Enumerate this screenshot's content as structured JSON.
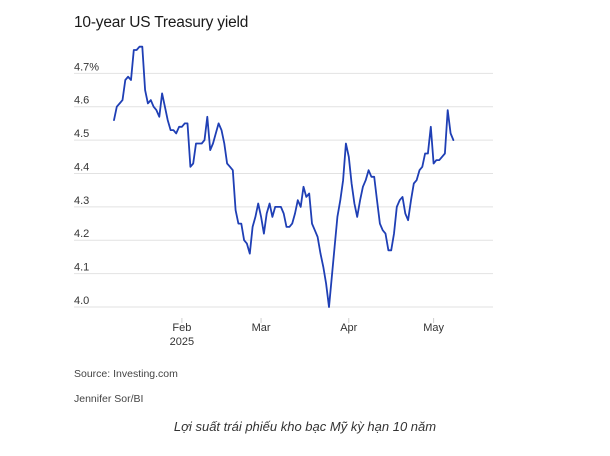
{
  "chart_data": {
    "type": "line",
    "title": "10-year US Treasury yield",
    "yticks": [
      "4.7%",
      "4.6",
      "4.5",
      "4.4",
      "4.3",
      "4.2",
      "4.1",
      "4.0"
    ],
    "ytick_values": [
      4.7,
      4.6,
      4.5,
      4.4,
      4.3,
      4.2,
      4.1,
      4.0
    ],
    "ylim": [
      3.97,
      4.8
    ],
    "xlim": [
      "2025-01-08",
      "2025-05-22"
    ],
    "xticks": [
      {
        "label": "Feb",
        "sublabel": "2025",
        "date": "2025-02-01"
      },
      {
        "label": "Mar",
        "sublabel": "",
        "date": "2025-03-01"
      },
      {
        "label": "Apr",
        "sublabel": "",
        "date": "2025-04-01"
      },
      {
        "label": "May",
        "sublabel": "",
        "date": "2025-05-01"
      }
    ],
    "grid": "horizontal",
    "line_color": "#1f3fb5",
    "series": [
      {
        "points": [
          [
            "2025-01-08",
            4.56
          ],
          [
            "2025-01-09",
            4.6
          ],
          [
            "2025-01-10",
            4.61
          ],
          [
            "2025-01-11",
            4.62
          ],
          [
            "2025-01-12",
            4.68
          ],
          [
            "2025-01-13",
            4.69
          ],
          [
            "2025-01-14",
            4.68
          ],
          [
            "2025-01-15",
            4.77
          ],
          [
            "2025-01-16",
            4.77
          ],
          [
            "2025-01-17",
            4.78
          ],
          [
            "2025-01-18",
            4.78
          ],
          [
            "2025-01-19",
            4.65
          ],
          [
            "2025-01-20",
            4.61
          ],
          [
            "2025-01-21",
            4.62
          ],
          [
            "2025-01-22",
            4.6
          ],
          [
            "2025-01-23",
            4.59
          ],
          [
            "2025-01-24",
            4.57
          ],
          [
            "2025-01-25",
            4.64
          ],
          [
            "2025-01-26",
            4.6
          ],
          [
            "2025-01-27",
            4.56
          ],
          [
            "2025-01-28",
            4.53
          ],
          [
            "2025-01-29",
            4.53
          ],
          [
            "2025-01-30",
            4.52
          ],
          [
            "2025-01-31",
            4.54
          ],
          [
            "2025-02-01",
            4.54
          ],
          [
            "2025-02-02",
            4.55
          ],
          [
            "2025-02-03",
            4.55
          ],
          [
            "2025-02-04",
            4.42
          ],
          [
            "2025-02-05",
            4.43
          ],
          [
            "2025-02-06",
            4.49
          ],
          [
            "2025-02-07",
            4.49
          ],
          [
            "2025-02-08",
            4.49
          ],
          [
            "2025-02-09",
            4.5
          ],
          [
            "2025-02-10",
            4.57
          ],
          [
            "2025-02-11",
            4.47
          ],
          [
            "2025-02-12",
            4.49
          ],
          [
            "2025-02-13",
            4.52
          ],
          [
            "2025-02-14",
            4.55
          ],
          [
            "2025-02-15",
            4.53
          ],
          [
            "2025-02-16",
            4.49
          ],
          [
            "2025-02-17",
            4.43
          ],
          [
            "2025-02-18",
            4.42
          ],
          [
            "2025-02-19",
            4.41
          ],
          [
            "2025-02-20",
            4.29
          ],
          [
            "2025-02-21",
            4.25
          ],
          [
            "2025-02-22",
            4.25
          ],
          [
            "2025-02-23",
            4.2
          ],
          [
            "2025-02-24",
            4.19
          ],
          [
            "2025-02-25",
            4.16
          ],
          [
            "2025-02-26",
            4.24
          ],
          [
            "2025-02-27",
            4.27
          ],
          [
            "2025-02-28",
            4.31
          ],
          [
            "2025-03-01",
            4.27
          ],
          [
            "2025-03-02",
            4.22
          ],
          [
            "2025-03-03",
            4.28
          ],
          [
            "2025-03-04",
            4.31
          ],
          [
            "2025-03-05",
            4.27
          ],
          [
            "2025-03-06",
            4.3
          ],
          [
            "2025-03-07",
            4.3
          ],
          [
            "2025-03-08",
            4.3
          ],
          [
            "2025-03-09",
            4.28
          ],
          [
            "2025-03-10",
            4.24
          ],
          [
            "2025-03-11",
            4.24
          ],
          [
            "2025-03-12",
            4.25
          ],
          [
            "2025-03-13",
            4.28
          ],
          [
            "2025-03-14",
            4.32
          ],
          [
            "2025-03-15",
            4.3
          ],
          [
            "2025-03-16",
            4.36
          ],
          [
            "2025-03-17",
            4.33
          ],
          [
            "2025-03-18",
            4.34
          ],
          [
            "2025-03-19",
            4.25
          ],
          [
            "2025-03-20",
            4.23
          ],
          [
            "2025-03-21",
            4.21
          ],
          [
            "2025-03-22",
            4.16
          ],
          [
            "2025-03-23",
            4.12
          ],
          [
            "2025-03-24",
            4.07
          ],
          [
            "2025-03-25",
            4.0
          ],
          [
            "2025-03-26",
            4.09
          ],
          [
            "2025-03-27",
            4.18
          ],
          [
            "2025-03-28",
            4.27
          ],
          [
            "2025-03-29",
            4.32
          ],
          [
            "2025-03-30",
            4.38
          ],
          [
            "2025-03-31",
            4.49
          ],
          [
            "2025-04-01",
            4.45
          ],
          [
            "2025-04-02",
            4.37
          ],
          [
            "2025-04-03",
            4.31
          ],
          [
            "2025-04-04",
            4.27
          ],
          [
            "2025-04-05",
            4.32
          ],
          [
            "2025-04-06",
            4.36
          ],
          [
            "2025-04-07",
            4.38
          ],
          [
            "2025-04-08",
            4.41
          ],
          [
            "2025-04-09",
            4.39
          ],
          [
            "2025-04-10",
            4.39
          ],
          [
            "2025-04-11",
            4.32
          ],
          [
            "2025-04-12",
            4.25
          ],
          [
            "2025-04-13",
            4.23
          ],
          [
            "2025-04-14",
            4.22
          ],
          [
            "2025-04-15",
            4.17
          ],
          [
            "2025-04-16",
            4.17
          ],
          [
            "2025-04-17",
            4.22
          ],
          [
            "2025-04-18",
            4.3
          ],
          [
            "2025-04-19",
            4.32
          ],
          [
            "2025-04-20",
            4.33
          ],
          [
            "2025-04-21",
            4.28
          ],
          [
            "2025-04-22",
            4.26
          ],
          [
            "2025-04-23",
            4.32
          ],
          [
            "2025-04-24",
            4.37
          ],
          [
            "2025-04-25",
            4.38
          ],
          [
            "2025-04-26",
            4.41
          ],
          [
            "2025-04-27",
            4.42
          ],
          [
            "2025-04-28",
            4.46
          ],
          [
            "2025-04-29",
            4.46
          ],
          [
            "2025-04-30",
            4.54
          ],
          [
            "2025-05-01",
            4.43
          ],
          [
            "2025-05-02",
            4.44
          ],
          [
            "2025-05-03",
            4.44
          ],
          [
            "2025-05-04",
            4.45
          ],
          [
            "2025-05-05",
            4.46
          ],
          [
            "2025-05-06",
            4.59
          ],
          [
            "2025-05-07",
            4.52
          ],
          [
            "2025-05-08",
            4.5
          ]
        ]
      }
    ],
    "source": "Source: Investing.com",
    "credit": "Jennifer Sor/BI"
  },
  "caption": "Lợi suất trái phiếu kho bạc Mỹ kỳ hạn 10 năm"
}
